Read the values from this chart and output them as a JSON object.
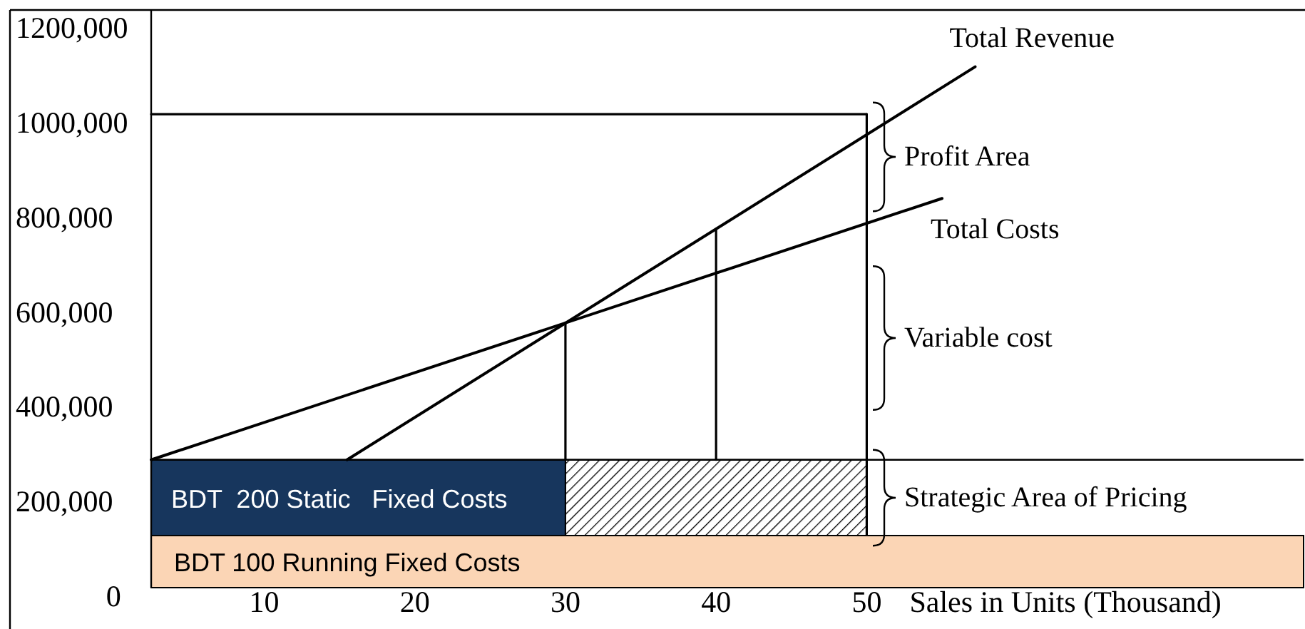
{
  "chart_data": {
    "type": "line",
    "xlabel": "Sales in Units (Thousand)",
    "xlim": [
      2.5,
      79
    ],
    "xticks": [
      10,
      20,
      30,
      40,
      50
    ],
    "ylim": [
      0,
      1220000
    ],
    "yticks": [
      {
        "value": 0,
        "label": "0"
      },
      {
        "value": 200000,
        "label": "200,000"
      },
      {
        "value": 400000,
        "label": "400,000"
      },
      {
        "value": 600000,
        "label": "600,000"
      },
      {
        "value": 800000,
        "label": "800,000"
      },
      {
        "value": 1000000,
        "label": "1000,000"
      },
      {
        "value": 1200000,
        "label": "1200,000"
      }
    ],
    "grid": false,
    "legend": false,
    "marker": "none",
    "line_style": "solid",
    "bands": [
      {
        "axis": "y",
        "from": 0,
        "to": 110000,
        "label": "BDT 100 Running Fixed Costs",
        "color": "#fbd5b5"
      }
    ],
    "ref_lines": [
      {
        "axis": "y",
        "value": 270000,
        "color": "#000000"
      }
    ],
    "series": [
      {
        "name": "BDT  200 Static   Fixed Costs",
        "type": "area",
        "color": "#17365d",
        "x": [
          2.5,
          30
        ],
        "values": [
          270000,
          270000
        ]
      },
      {
        "type": "area",
        "color": "#000000",
        "x": [
          30,
          50
        ],
        "values": [
          270000,
          270000
        ]
      },
      {
        "name": "Total Revenue",
        "color": "#000000",
        "x": [
          15.5,
          57.2
        ],
        "values": [
          270000,
          1100000
        ]
      },
      {
        "name": "Total Costs",
        "color": "#000000",
        "x": [
          2.5,
          55
        ],
        "values": [
          270000,
          822000
        ]
      },
      {
        "color": "#000000",
        "x": [
          2.5,
          50
        ],
        "values": [
          1000000,
          1000000
        ]
      },
      {
        "color": "#000000",
        "x": [
          30,
          30
        ],
        "values": [
          270000,
          559000
        ]
      },
      {
        "color": "#000000",
        "x": [
          40,
          40
        ],
        "values": [
          270000,
          758000
        ]
      },
      {
        "color": "#000000",
        "x": [
          50,
          50
        ],
        "values": [
          110000,
          1000000
        ]
      }
    ],
    "annotations": [
      "Profit Area",
      "Variable cost",
      "Strategic Area of Pricing"
    ]
  }
}
